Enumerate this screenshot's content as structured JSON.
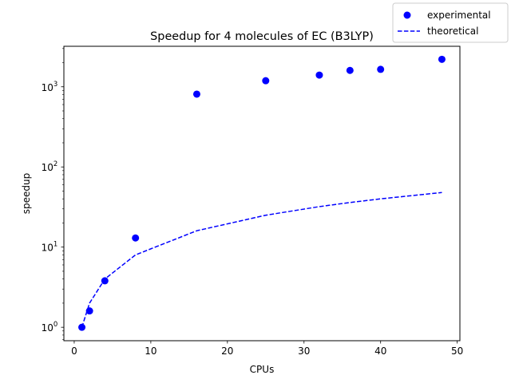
{
  "chart_data": {
    "type": "scatter",
    "title": "Speedup for 4 molecules of EC (B3LYP)",
    "xlabel": "CPUs",
    "ylabel": "speedup",
    "xlim": [
      -1.35,
      50.35
    ],
    "ylim": [
      0.68,
      3200
    ],
    "yscale": "log",
    "grid": false,
    "legend_position": "top-right, outside axes",
    "x_ticks": [
      {
        "value": 0,
        "label": "0"
      },
      {
        "value": 10,
        "label": "10"
      },
      {
        "value": 20,
        "label": "20"
      },
      {
        "value": 30,
        "label": "30"
      },
      {
        "value": 40,
        "label": "40"
      },
      {
        "value": 50,
        "label": "50"
      }
    ],
    "y_ticks": [
      {
        "value": 1,
        "base": "10",
        "exp": "0"
      },
      {
        "value": 10,
        "base": "10",
        "exp": "1"
      },
      {
        "value": 100,
        "base": "10",
        "exp": "2"
      },
      {
        "value": 1000,
        "base": "10",
        "exp": "3"
      }
    ],
    "series": [
      {
        "name": "experimental",
        "kind": "scatter",
        "color": "#0000ff",
        "x": [
          1,
          2,
          4,
          8,
          16,
          25,
          32,
          36,
          40,
          48
        ],
        "y": [
          1.0,
          1.6,
          3.8,
          13,
          810,
          1190,
          1400,
          1600,
          1650,
          2200
        ]
      },
      {
        "name": "theoretical",
        "kind": "line",
        "style": "dashed",
        "color": "#0000ff",
        "x": [
          1,
          2,
          4,
          8,
          16,
          25,
          32,
          36,
          40,
          48
        ],
        "y": [
          1,
          2,
          4,
          8,
          16,
          25,
          32,
          36,
          40,
          48
        ]
      }
    ]
  }
}
